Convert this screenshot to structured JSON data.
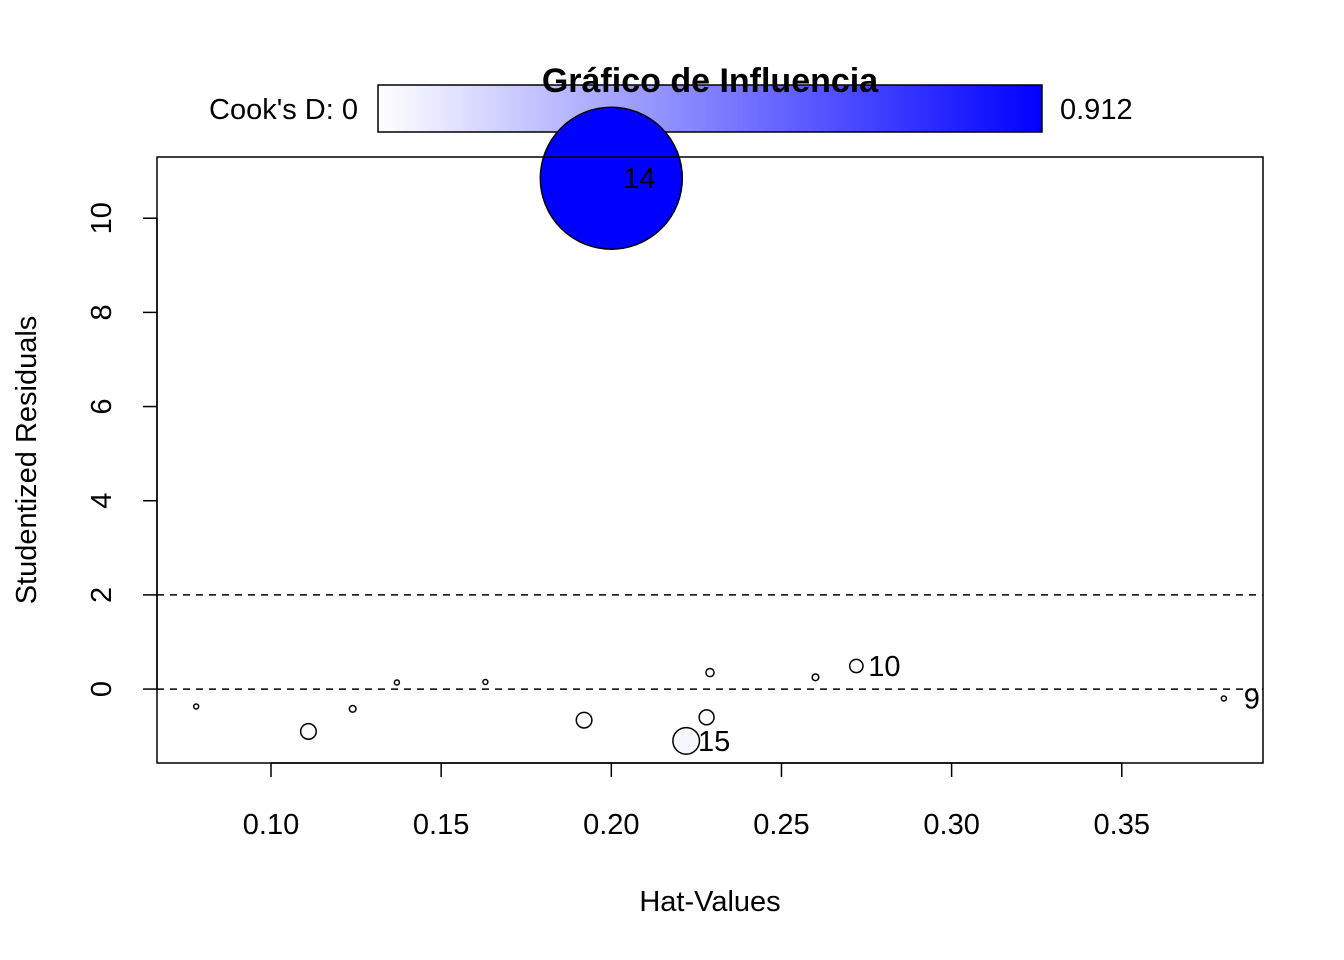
{
  "chart_data": {
    "type": "scatter",
    "title": "Gráfico de Influencia",
    "xlabel": "Hat-Values",
    "ylabel": "Studentized Residuals",
    "xlim": [
      0.0665,
      0.3915
    ],
    "ylim": [
      -1.57,
      11.3
    ],
    "x_ticks": [
      0.1,
      0.15,
      0.2,
      0.25,
      0.3,
      0.35
    ],
    "x_tick_labels": [
      "0.10",
      "0.15",
      "0.20",
      "0.25",
      "0.30",
      "0.35"
    ],
    "y_ticks": [
      0,
      2,
      4,
      6,
      8,
      10
    ],
    "y_tick_labels": [
      "0",
      "2",
      "4",
      "6",
      "8",
      "10"
    ],
    "reference_lines": [
      0,
      2
    ],
    "legend": {
      "label_left": "Cook's D: 0",
      "label_right": "0.912",
      "min": 0,
      "max": 0.912,
      "color_low": "#ffffff",
      "color_high": "#0000ff"
    },
    "points": [
      {
        "hat": 0.078,
        "rstudent": -0.37,
        "cookd": 0.001,
        "label": ""
      },
      {
        "hat": 0.111,
        "rstudent": -0.9,
        "cookd": 0.011,
        "label": ""
      },
      {
        "hat": 0.124,
        "rstudent": -0.42,
        "cookd": 0.002,
        "label": ""
      },
      {
        "hat": 0.137,
        "rstudent": 0.14,
        "cookd": 0.0002,
        "label": ""
      },
      {
        "hat": 0.163,
        "rstudent": 0.15,
        "cookd": 0.0003,
        "label": ""
      },
      {
        "hat": 0.192,
        "rstudent": -0.66,
        "cookd": 0.011,
        "label": ""
      },
      {
        "hat": 0.2,
        "rstudent": 10.85,
        "cookd": 0.912,
        "label": "14"
      },
      {
        "hat": 0.222,
        "rstudent": -1.1,
        "cookd": 0.032,
        "label": "15"
      },
      {
        "hat": 0.228,
        "rstudent": -0.6,
        "cookd": 0.01,
        "label": ""
      },
      {
        "hat": 0.229,
        "rstudent": 0.35,
        "cookd": 0.003,
        "label": ""
      },
      {
        "hat": 0.26,
        "rstudent": 0.25,
        "cookd": 0.002,
        "label": ""
      },
      {
        "hat": 0.272,
        "rstudent": 0.49,
        "cookd": 0.008,
        "label": "10"
      },
      {
        "hat": 0.38,
        "rstudent": -0.2,
        "cookd": 0.001,
        "label": "9"
      }
    ]
  }
}
